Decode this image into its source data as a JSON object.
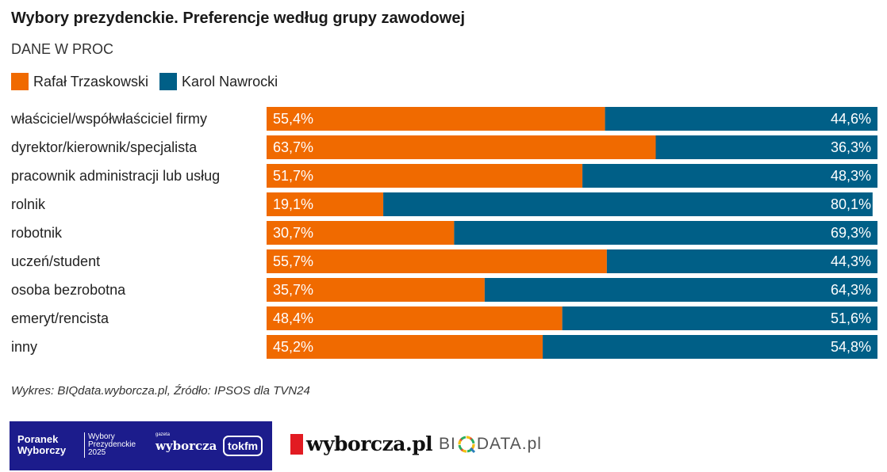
{
  "title": "Wybory prezydenckie. Preferencje według grupy zawodowej",
  "subtitle": "DANE W PROC",
  "legend": [
    {
      "label": "Rafał Trzaskowski",
      "color": "#f06a00"
    },
    {
      "label": "Karol Nawrocki",
      "color": "#005f87"
    }
  ],
  "chart_data": {
    "type": "bar",
    "stacked": true,
    "orientation": "horizontal",
    "categories": [
      "właściciel/współwłaściciel firmy",
      "dyrektor/kierownik/specjalista",
      "pracownik administracji lub usług",
      "rolnik",
      "robotnik",
      "uczeń/student",
      "osoba bezrobotna",
      "emeryt/rencista",
      "inny"
    ],
    "series": [
      {
        "name": "Rafał Trzaskowski",
        "color": "#f06a00",
        "values": [
          55.4,
          63.7,
          51.7,
          19.1,
          30.7,
          55.7,
          35.7,
          48.4,
          45.2
        ],
        "labels": [
          "55,4%",
          "63,7%",
          "51,7%",
          "19,1%",
          "30,7%",
          "55,7%",
          "35,7%",
          "48,4%",
          "45,2%"
        ]
      },
      {
        "name": "Karol Nawrocki",
        "color": "#005f87",
        "values": [
          44.6,
          36.3,
          48.3,
          80.1,
          69.3,
          44.3,
          64.3,
          51.6,
          54.8
        ],
        "labels": [
          "44,6%",
          "36,3%",
          "48,3%",
          "80,1%",
          "69,3%",
          "44,3%",
          "64,3%",
          "51,6%",
          "54,8%"
        ]
      }
    ],
    "xlim": [
      0,
      100
    ],
    "grid": false,
    "legend_position": "top-left"
  },
  "source": "Wykres: BIQdata.wyborcza.pl, Źródło: IPSOS dla TVN24",
  "footer": {
    "banner_line1": "Poranek Wyborczy",
    "banner_line2": "Wybory Prezydenckie 2025",
    "banner_gazeta": "gazeta",
    "banner_wyborcza": "wyborcza",
    "banner_tokfm": "tokfm",
    "wyborcza_logo": "wyborcza.pl",
    "biqdata_logo_left": "BI",
    "biqdata_logo_right": "DATA.pl",
    "banner_color": "#1c1c8c",
    "wyborcza_red": "#e21b22"
  }
}
